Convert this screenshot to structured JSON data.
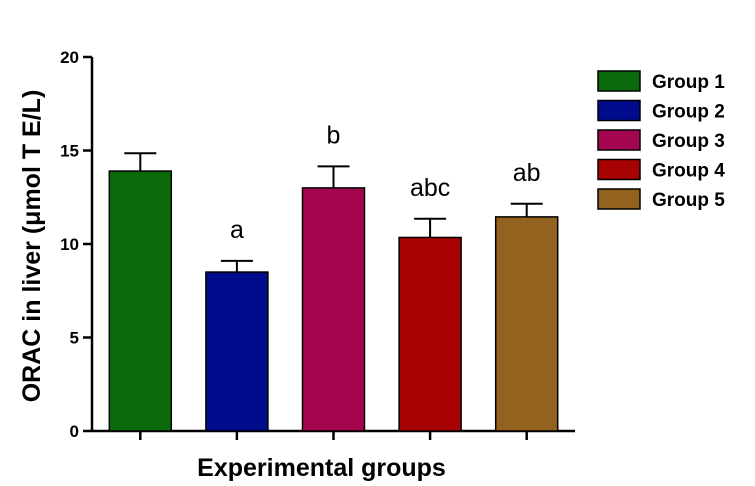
{
  "chart_data": {
    "type": "bar",
    "title": "",
    "xlabel": "Experimental groups",
    "ylabel": "ORAC in liver (μmol T E/L)",
    "ylim": [
      0,
      20
    ],
    "yticks": [
      0,
      5,
      10,
      15,
      20
    ],
    "categories": [
      "Group 1",
      "Group 2",
      "Group 3",
      "Group 4",
      "Group 5"
    ],
    "values": [
      13.9,
      8.5,
      13.0,
      10.35,
      11.45
    ],
    "errors": [
      0.95,
      0.6,
      1.15,
      1.0,
      0.7
    ],
    "significance": [
      "",
      "a",
      "b",
      "abc",
      "ab"
    ],
    "colors": [
      "#0b6a0b",
      "#000c8c",
      "#a3064f",
      "#a80202",
      "#93621f"
    ],
    "legend_position": "right",
    "grid": false
  }
}
